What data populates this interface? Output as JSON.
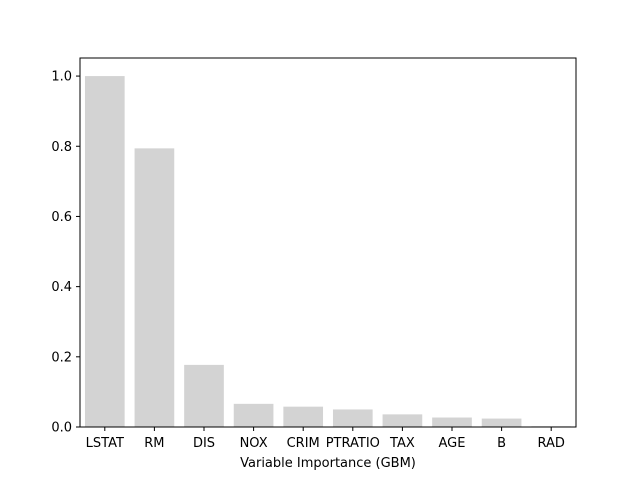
{
  "chart_data": {
    "type": "bar",
    "categories": [
      "LSTAT",
      "RM",
      "DIS",
      "NOX",
      "CRIM",
      "PTRATIO",
      "TAX",
      "AGE",
      "B",
      "RAD"
    ],
    "values": [
      1.0,
      0.794,
      0.177,
      0.066,
      0.058,
      0.05,
      0.036,
      0.027,
      0.024,
      0.002
    ],
    "title": "",
    "xlabel": "Variable Importance (GBM)",
    "ylabel": "",
    "ylim": [
      0,
      1.0
    ],
    "yticks": [
      0.0,
      0.2,
      0.4,
      0.6,
      0.8,
      1.0
    ],
    "ytick_labels": [
      "0.0",
      "0.2",
      "0.4",
      "0.6",
      "0.8",
      "1.0"
    ],
    "grid": false,
    "bar_color": "#d3d3d3"
  }
}
